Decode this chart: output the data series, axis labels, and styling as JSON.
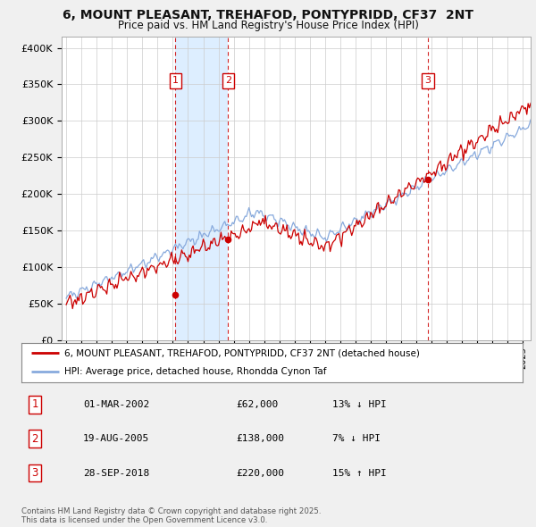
{
  "title": "6, MOUNT PLEASANT, TREHAFOD, PONTYPRIDD, CF37  2NT",
  "subtitle": "Price paid vs. HM Land Registry's House Price Index (HPI)",
  "ylabel_ticks": [
    "£0",
    "£50K",
    "£100K",
    "£150K",
    "£200K",
    "£250K",
    "£300K",
    "£350K",
    "£400K"
  ],
  "ytick_values": [
    0,
    50000,
    100000,
    150000,
    200000,
    250000,
    300000,
    350000,
    400000
  ],
  "ylim": [
    0,
    415000
  ],
  "xlim_years": [
    1994.7,
    2025.5
  ],
  "sale_points": [
    {
      "label": "1",
      "year": 2002.17,
      "price": 62000,
      "date": "01-MAR-2002",
      "hpi_pct": "13%",
      "hpi_dir": "↓"
    },
    {
      "label": "2",
      "year": 2005.64,
      "price": 138000,
      "date": "19-AUG-2005",
      "hpi_pct": "7%",
      "hpi_dir": "↓"
    },
    {
      "label": "3",
      "year": 2018.75,
      "price": 220000,
      "date": "28-SEP-2018",
      "hpi_pct": "15%",
      "hpi_dir": "↑"
    }
  ],
  "red_line_color": "#cc0000",
  "blue_line_color": "#88aadd",
  "shade_color": "#ddeeff",
  "vline_color": "#cc0000",
  "grid_color": "#cccccc",
  "background_color": "#f0f0f0",
  "plot_bg_color": "#ffffff",
  "legend_label_red": "6, MOUNT PLEASANT, TREHAFOD, PONTYPRIDD, CF37 2NT (detached house)",
  "legend_label_blue": "HPI: Average price, detached house, Rhondda Cynon Taf",
  "footer_text": "Contains HM Land Registry data © Crown copyright and database right 2025.\nThis data is licensed under the Open Government Licence v3.0.",
  "table_rows": [
    [
      "1",
      "01-MAR-2002",
      "£62,000",
      "13% ↓ HPI"
    ],
    [
      "2",
      "19-AUG-2005",
      "£138,000",
      "7% ↓ HPI"
    ],
    [
      "3",
      "28-SEP-2018",
      "£220,000",
      "15% ↑ HPI"
    ]
  ]
}
